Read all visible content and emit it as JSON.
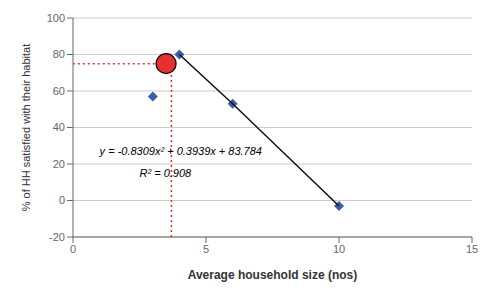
{
  "chart_data": {
    "type": "scatter",
    "x_label": "Average household size (nos)",
    "y_label": "% of HH satisfied with their habitat",
    "xlim": [
      0,
      15
    ],
    "ylim": [
      -20,
      100
    ],
    "xticks": [
      0,
      5,
      10,
      15
    ],
    "yticks": [
      -20,
      0,
      20,
      40,
      60,
      80,
      100
    ],
    "grid": true,
    "series": [
      {
        "type": "scatter",
        "marker": "diamond",
        "color": "#3B5EAB",
        "x": [
          3,
          4,
          6,
          10
        ],
        "values": [
          57,
          80,
          53,
          -3
        ]
      },
      {
        "type": "line",
        "line_style": "solid",
        "color": "#111111",
        "x": [
          4,
          6,
          10
        ],
        "values": [
          80,
          53,
          -3
        ]
      },
      {
        "type": "line",
        "line_style": "dotted",
        "color": "#E83030",
        "x": [
          3.7,
          3.7,
          0
        ],
        "values": [
          -20,
          75,
          75
        ]
      },
      {
        "type": "scatter",
        "marker": "circle",
        "color": "#E83030",
        "x": [
          3.5
        ],
        "values": [
          75
        ]
      }
    ],
    "annotations": [
      {
        "text": "y = -0.8309x² + 0.3939x + 83.784",
        "x": 1.0,
        "y": 25
      },
      {
        "text": "R² = 0.908",
        "x": 2.5,
        "y": 13
      }
    ]
  }
}
